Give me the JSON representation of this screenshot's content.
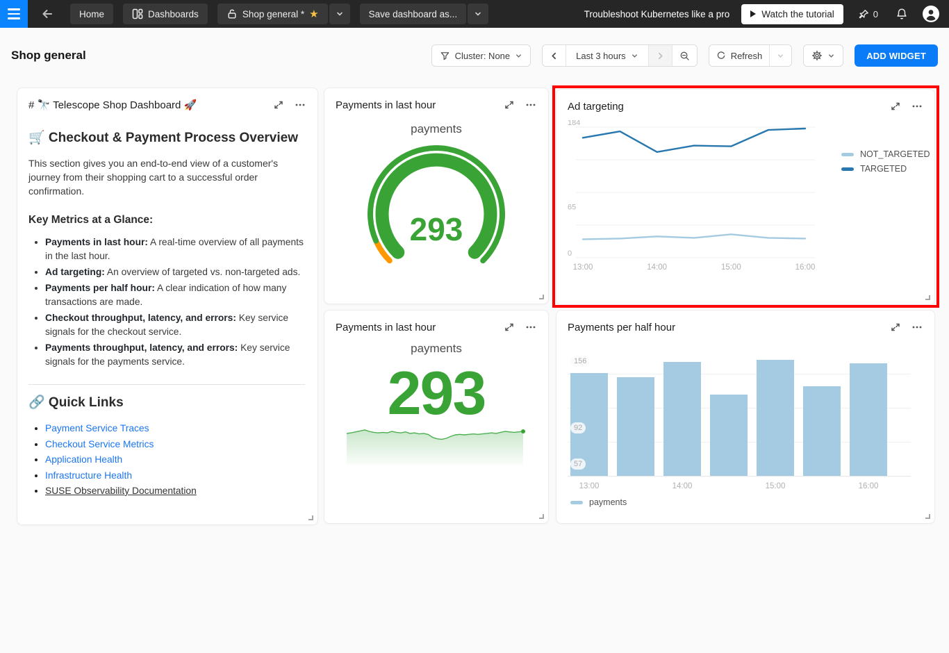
{
  "navbar": {
    "home": "Home",
    "dashboards": "Dashboards",
    "current_dashboard": "Shop general *",
    "save_as": "Save dashboard as...",
    "promo": "Troubleshoot Kubernetes like a pro",
    "watch_tutorial": "Watch the tutorial",
    "pin_count": "0"
  },
  "header": {
    "title": "Shop general",
    "cluster": "Cluster: None",
    "time_range": "Last 3 hours",
    "refresh": "Refresh",
    "add_widget": "ADD WIDGET"
  },
  "markdown": {
    "title": "# 🔭 Telescope Shop Dashboard 🚀",
    "section_heading": "🛒 Checkout & Payment Process Overview",
    "intro": "This section gives you an end-to-end view of a customer's journey from their shopping cart to a successful order confirmation.",
    "metrics_heading": "Key Metrics at a Glance:",
    "metrics": [
      {
        "lead": "Payments in last hour:",
        "text": " A real-time overview of all payments in the last hour."
      },
      {
        "lead": "Ad targeting:",
        "text": " An overview of targeted vs. non-targeted ads."
      },
      {
        "lead": "Payments per half hour:",
        "text": " A clear indication of how many transactions are made."
      },
      {
        "lead": "Checkout throughput, latency, and errors:",
        "text": " Key service signals for the checkout service."
      },
      {
        "lead": "Payments throughput, latency, and errors:",
        "text": " Key service signals for the payments service."
      }
    ],
    "quick_links_heading": "🔗 Quick Links",
    "links": [
      {
        "label": "Payment Service Traces",
        "kind": "link"
      },
      {
        "label": "Checkout Service Metrics",
        "kind": "link"
      },
      {
        "label": "Application Health",
        "kind": "link"
      },
      {
        "label": "Infrastructure Health",
        "kind": "link"
      },
      {
        "label": "SUSE Observability Documentation",
        "kind": "underline"
      }
    ]
  },
  "widgets": {
    "gauge": {
      "title": "Payments in last hour",
      "series": "payments",
      "value": "293"
    },
    "number": {
      "title": "Payments in last hour",
      "series": "payments",
      "value": "293"
    },
    "ad_targeting": {
      "title": "Ad targeting"
    },
    "bars": {
      "title": "Payments per half hour"
    }
  },
  "colors": {
    "green": "#3aa335",
    "spark_green": "#4caf50",
    "gauge_orange": "#ff9800",
    "targeted_blue": "#2878af",
    "not_targeted_blue": "#a5cbe2",
    "accent_blue": "#0b7cf7",
    "highlight_red": "#ff0000"
  },
  "chart_data": [
    {
      "id": "ad_targeting",
      "type": "line",
      "title": "Ad targeting",
      "x": [
        "13:00",
        "13:30",
        "14:00",
        "14:30",
        "15:00",
        "15:30",
        "16:00"
      ],
      "x_axis_labels": [
        "13:00",
        "14:00",
        "15:00",
        "16:00"
      ],
      "ylim": [
        0,
        184
      ],
      "y_ticks": [
        184,
        65,
        0
      ],
      "grid": true,
      "legend_position": "right",
      "series": [
        {
          "name": "NOT_TARGETED",
          "color": "#a5cbe2",
          "values": [
            26,
            27,
            30,
            28,
            33,
            28,
            27
          ]
        },
        {
          "name": "TARGETED",
          "color": "#2878af",
          "values": [
            169,
            178,
            149,
            158,
            157,
            180,
            182
          ]
        }
      ]
    },
    {
      "id": "payments_per_half_hour",
      "type": "bar",
      "title": "Payments per half hour",
      "categories": [
        "13:00",
        "13:30",
        "14:00",
        "14:30",
        "15:00",
        "15:30",
        "16:00"
      ],
      "values": [
        144,
        140,
        155,
        123,
        157,
        131,
        153
      ],
      "x_axis_labels": [
        "13:00",
        "14:00",
        "15:00",
        "16:00"
      ],
      "y_ticks": [
        156,
        92,
        57
      ],
      "ylim": [
        45,
        162
      ],
      "bar_color": "#a5cbe2",
      "legend": [
        {
          "name": "payments",
          "color": "#a5cbe2"
        }
      ],
      "legend_position": "bottom"
    },
    {
      "id": "payments_gauge",
      "type": "gauge",
      "series": "payments",
      "value": 293
    },
    {
      "id": "payments_number",
      "type": "line",
      "series": "payments",
      "value": 293,
      "sparkline": [
        289,
        290,
        292,
        294,
        296,
        293,
        291,
        290,
        291,
        290,
        293,
        291,
        290,
        292,
        289,
        290,
        288,
        289,
        287,
        281,
        278,
        277,
        279,
        283,
        286,
        287,
        286,
        287,
        288,
        287,
        288,
        289,
        290,
        289,
        291,
        293,
        292,
        291,
        292,
        293
      ]
    }
  ]
}
